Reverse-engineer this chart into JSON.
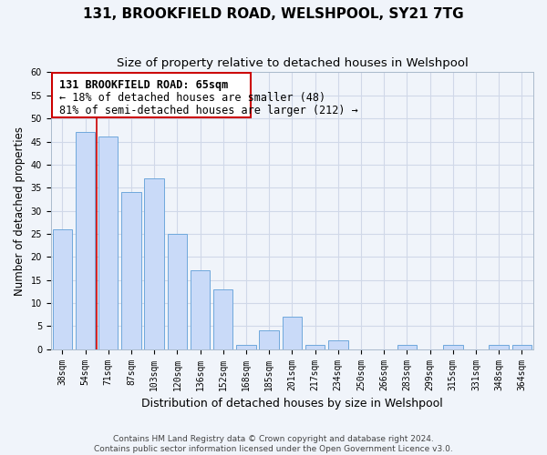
{
  "title": "131, BROOKFIELD ROAD, WELSHPOOL, SY21 7TG",
  "subtitle": "Size of property relative to detached houses in Welshpool",
  "xlabel": "Distribution of detached houses by size in Welshpool",
  "ylabel": "Number of detached properties",
  "bar_labels": [
    "38sqm",
    "54sqm",
    "71sqm",
    "87sqm",
    "103sqm",
    "120sqm",
    "136sqm",
    "152sqm",
    "168sqm",
    "185sqm",
    "201sqm",
    "217sqm",
    "234sqm",
    "250sqm",
    "266sqm",
    "283sqm",
    "299sqm",
    "315sqm",
    "331sqm",
    "348sqm",
    "364sqm"
  ],
  "bar_values": [
    26,
    47,
    46,
    34,
    37,
    25,
    17,
    13,
    1,
    4,
    7,
    1,
    2,
    0,
    0,
    1,
    0,
    1,
    0,
    1,
    1
  ],
  "bar_color": "#c9daf8",
  "bar_edge_color": "#6fa8dc",
  "vline_x_index": 1.5,
  "vline_color": "#cc0000",
  "property_label": "131 BROOKFIELD ROAD: 65sqm",
  "annotation_line1": "← 18% of detached houses are smaller (48)",
  "annotation_line2": "81% of semi-detached houses are larger (212) →",
  "box_color": "#ffffff",
  "box_edge_color": "#cc0000",
  "ylim": [
    0,
    60
  ],
  "yticks": [
    0,
    5,
    10,
    15,
    20,
    25,
    30,
    35,
    40,
    45,
    50,
    55,
    60
  ],
  "grid_color": "#d0d8e8",
  "footer_line1": "Contains HM Land Registry data © Crown copyright and database right 2024.",
  "footer_line2": "Contains public sector information licensed under the Open Government Licence v3.0.",
  "title_fontsize": 11,
  "subtitle_fontsize": 9.5,
  "xlabel_fontsize": 9,
  "ylabel_fontsize": 8.5,
  "tick_fontsize": 7,
  "annotation_fontsize": 8.5,
  "footer_fontsize": 6.5,
  "bg_color": "#f0f4fa"
}
